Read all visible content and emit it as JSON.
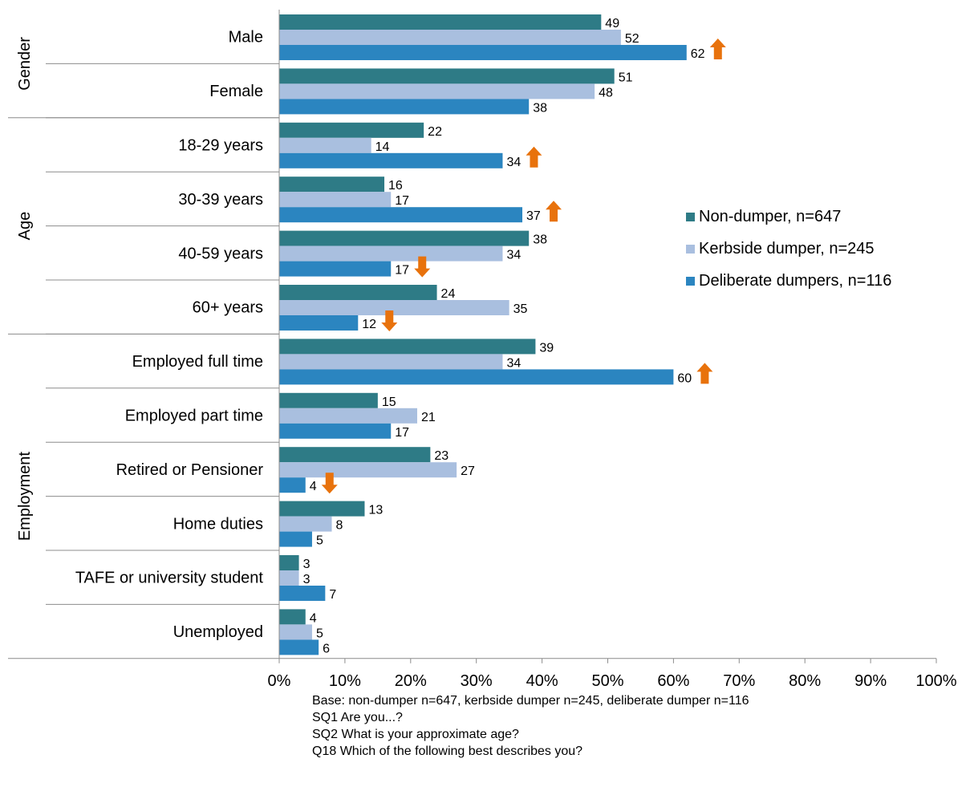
{
  "chart_data": {
    "type": "bar",
    "orientation": "horizontal",
    "groups": [
      {
        "name": "Gender",
        "categories": [
          "Male",
          "Female"
        ]
      },
      {
        "name": "Age",
        "categories": [
          "18-29 years",
          "30-39 years",
          "40-59 years",
          "60+ years"
        ]
      },
      {
        "name": "Employment",
        "categories": [
          "Employed full time",
          "Employed part time",
          "Retired or Pensioner",
          "Home duties",
          "TAFE or university student",
          "Unemployed"
        ]
      }
    ],
    "categories": [
      "Male",
      "Female",
      "18-29 years",
      "30-39 years",
      "40-59 years",
      "60+ years",
      "Employed full time",
      "Employed part time",
      "Retired or Pensioner",
      "Home duties",
      "TAFE or university student",
      "Unemployed"
    ],
    "series": [
      {
        "name": "Non-dumper, n=647",
        "color": "#2e7b86",
        "values": [
          49,
          51,
          22,
          16,
          38,
          24,
          39,
          15,
          23,
          13,
          3,
          4
        ]
      },
      {
        "name": "Kerbside dumper, n=245",
        "color": "#a9bfdf",
        "values": [
          52,
          48,
          14,
          17,
          34,
          35,
          34,
          21,
          27,
          8,
          3,
          5
        ]
      },
      {
        "name": "Deliberate dumpers, n=116",
        "color": "#2b85c0",
        "values": [
          62,
          38,
          34,
          37,
          17,
          12,
          60,
          17,
          4,
          5,
          7,
          6
        ]
      }
    ],
    "significance_markers": [
      {
        "category": "Male",
        "series": "Deliberate dumpers, n=116",
        "direction": "up"
      },
      {
        "category": "18-29 years",
        "series": "Deliberate dumpers, n=116",
        "direction": "up"
      },
      {
        "category": "30-39 years",
        "series": "Deliberate dumpers, n=116",
        "direction": "up"
      },
      {
        "category": "40-59 years",
        "series": "Deliberate dumpers, n=116",
        "direction": "down"
      },
      {
        "category": "60+ years",
        "series": "Deliberate dumpers, n=116",
        "direction": "down"
      },
      {
        "category": "Employed full time",
        "series": "Deliberate dumpers, n=116",
        "direction": "up"
      },
      {
        "category": "Retired or Pensioner",
        "series": "Deliberate dumpers, n=116",
        "direction": "down"
      }
    ],
    "marker_color": "#e8720c",
    "xlim": [
      0,
      100
    ],
    "x_ticks": [
      0,
      10,
      20,
      30,
      40,
      50,
      60,
      70,
      80,
      90,
      100
    ],
    "x_tick_labels": [
      "0%",
      "10%",
      "20%",
      "30%",
      "40%",
      "50%",
      "60%",
      "70%",
      "80%",
      "90%",
      "100%"
    ],
    "grid": false,
    "legend_position": "right"
  },
  "notes": [
    "Base: non-dumper n=647, kerbside dumper n=245, deliberate dumper n=116",
    "SQ1 Are you...?",
    "SQ2 What is your approximate age?",
    "Q18 Which of the following best describes you?"
  ]
}
